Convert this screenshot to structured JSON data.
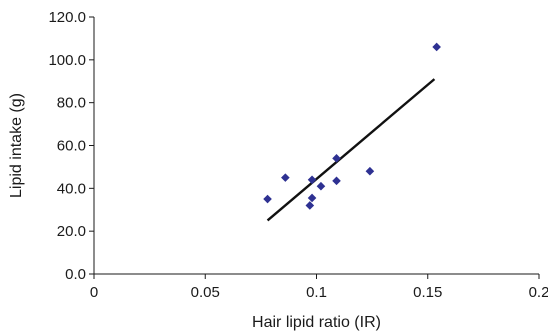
{
  "chart_data": {
    "type": "scatter",
    "title": "",
    "xlabel": "Hair lipid ratio (IR)",
    "ylabel": "Lipid intake (g)",
    "xlim": [
      0,
      0.2
    ],
    "ylim": [
      0,
      120
    ],
    "x_ticks": [
      0,
      0.05,
      0.1,
      0.15,
      0.2
    ],
    "x_tick_labels": [
      "0",
      "0.05",
      "0.1",
      "0.15",
      "0.2"
    ],
    "y_ticks": [
      0,
      20,
      40,
      60,
      80,
      100,
      120
    ],
    "y_tick_labels": [
      "0.0",
      "20.0",
      "40.0",
      "60.0",
      "80.0",
      "100.0",
      "120.0"
    ],
    "grid": false,
    "legend": false,
    "marker_color": "#2e3192",
    "line_color": "#111111",
    "points": [
      {
        "x": 0.078,
        "y": 35.0
      },
      {
        "x": 0.086,
        "y": 45.0
      },
      {
        "x": 0.097,
        "y": 32.0
      },
      {
        "x": 0.098,
        "y": 35.5
      },
      {
        "x": 0.098,
        "y": 44.0
      },
      {
        "x": 0.102,
        "y": 41.0
      },
      {
        "x": 0.109,
        "y": 43.5
      },
      {
        "x": 0.109,
        "y": 54.0
      },
      {
        "x": 0.124,
        "y": 48.0
      },
      {
        "x": 0.154,
        "y": 106.0
      }
    ],
    "trendline": {
      "x": [
        0.078,
        0.153
      ],
      "y": [
        25.0,
        91.0
      ]
    }
  }
}
